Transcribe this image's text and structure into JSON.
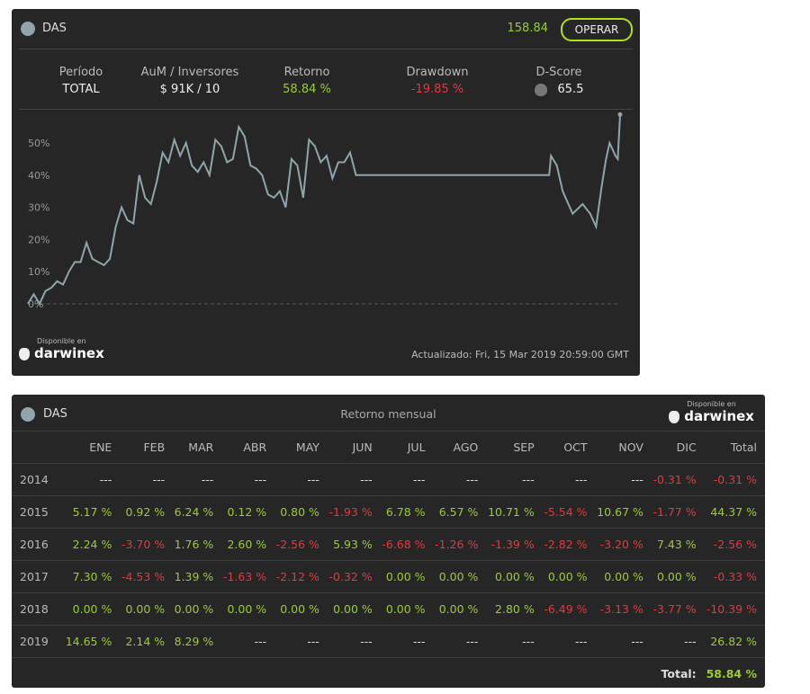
{
  "top": {
    "name": "DAS",
    "price": "158.84",
    "operar": "OPERAR",
    "stats": [
      {
        "label": "Período",
        "value": "TOTAL",
        "tone": ""
      },
      {
        "label": "AuM / Inversores",
        "value": "$ 91K / 10",
        "tone": ""
      },
      {
        "label": "Retorno",
        "value": "58.84 %",
        "tone": "g"
      },
      {
        "label": "Drawdown",
        "value": "-19.85 %",
        "tone": "r"
      },
      {
        "label": "D-Score",
        "value": "65.5",
        "tone": ""
      }
    ],
    "brand_small": "Disponible en",
    "brand": "darwinex",
    "updated": "Actualizado: Fri, 15 Mar 2019 20:59:00 GMT"
  },
  "chart_data": {
    "type": "line",
    "title": "",
    "xlabel": "",
    "ylabel": "",
    "ylim": [
      0,
      60
    ],
    "yticks": [
      "0%",
      "10%",
      "20%",
      "30%",
      "40%",
      "50%"
    ],
    "ytick_values": [
      0,
      10,
      20,
      30,
      40,
      50
    ],
    "grid": false,
    "x": [
      0,
      1,
      2,
      3,
      4,
      5,
      6,
      7,
      8,
      9,
      10,
      11,
      12,
      13,
      14,
      15,
      16,
      17,
      18,
      19,
      20,
      21,
      22,
      23,
      24,
      25,
      26,
      27,
      28,
      29,
      30,
      31,
      32,
      33,
      34,
      35,
      36,
      37,
      38,
      39,
      40,
      41,
      42,
      43,
      44,
      45,
      46,
      47,
      48,
      49,
      50,
      51,
      52,
      53,
      54,
      55,
      56,
      57,
      58,
      59,
      60,
      89,
      89.3,
      90.3,
      91.3,
      93,
      94.7,
      96,
      97,
      98,
      98.7,
      99.3,
      100.3,
      100.7,
      101.1
    ],
    "y": [
      0,
      3,
      0,
      4,
      5,
      7,
      6,
      10,
      13,
      13,
      19,
      14,
      13,
      12,
      14,
      24,
      30,
      26,
      25,
      40,
      33,
      31,
      38,
      47,
      44,
      51,
      46,
      50,
      43,
      41,
      44,
      40,
      51,
      49,
      44,
      45,
      55,
      52,
      43,
      42,
      40,
      34,
      33,
      35,
      30,
      45,
      43,
      33,
      51,
      49,
      44,
      46,
      39,
      44,
      44,
      47,
      40,
      40,
      40,
      40,
      40,
      40,
      46,
      43,
      35,
      28,
      31,
      28,
      24,
      37,
      45,
      50,
      46,
      45,
      58.84
    ]
  },
  "monthly": {
    "name": "DAS",
    "title": "Retorno mensual",
    "brand_small": "Disponible en",
    "brand": "darwinex",
    "headers": [
      "",
      "ENE",
      "FEB",
      "MAR",
      "ABR",
      "MAY",
      "JUN",
      "JUL",
      "AGO",
      "SEP",
      "OCT",
      "NOV",
      "DIC",
      "Total"
    ],
    "rows": [
      [
        "2014",
        "---",
        "---",
        "---",
        "---",
        "---",
        "---",
        "---",
        "---",
        "---",
        "---",
        "---",
        "-0.31 %",
        "-0.31 %"
      ],
      [
        "2015",
        "5.17 %",
        "0.92 %",
        "6.24 %",
        "0.12 %",
        "0.80 %",
        "-1.93 %",
        "6.78 %",
        "6.57 %",
        "10.71 %",
        "-5.54 %",
        "10.67 %",
        "-1.77 %",
        "44.37 %"
      ],
      [
        "2016",
        "2.24 %",
        "-3.70 %",
        "1.76 %",
        "2.60 %",
        "-2.56 %",
        "5.93 %",
        "-6.68 %",
        "-1.26 %",
        "-1.39 %",
        "-2.82 %",
        "-3.20 %",
        "7.43 %",
        "-2.56 %"
      ],
      [
        "2017",
        "7.30 %",
        "-4.53 %",
        "1.39 %",
        "-1.63 %",
        "-2.12 %",
        "-0.32 %",
        "0.00 %",
        "0.00 %",
        "0.00 %",
        "0.00 %",
        "0.00 %",
        "0.00 %",
        "-0.33 %"
      ],
      [
        "2018",
        "0.00 %",
        "0.00 %",
        "0.00 %",
        "0.00 %",
        "0.00 %",
        "0.00 %",
        "0.00 %",
        "0.00 %",
        "2.80 %",
        "-6.49 %",
        "-3.13 %",
        "-3.77 %",
        "-10.39 %"
      ],
      [
        "2019",
        "14.65 %",
        "2.14 %",
        "8.29 %",
        "---",
        "---",
        "---",
        "---",
        "---",
        "---",
        "---",
        "---",
        "---",
        "26.82 %"
      ]
    ],
    "total_label": "Total:",
    "total_value": "58.84 %"
  },
  "colors": {
    "green": "#9acd32",
    "red": "#e0393e",
    "line": "#8fa5ab"
  }
}
